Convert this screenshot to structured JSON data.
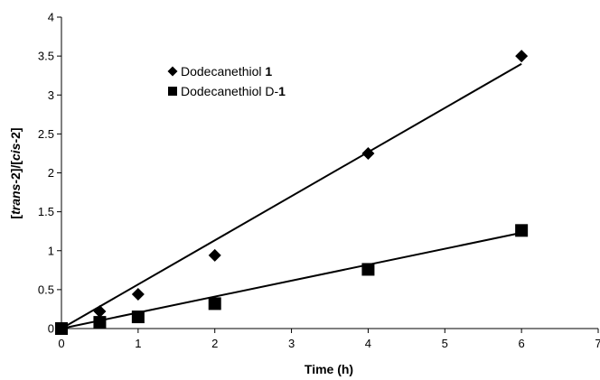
{
  "chart_data": {
    "type": "scatter",
    "title": "",
    "xlabel": "Time (h)",
    "ylabel": {
      "open": "[",
      "trans": "trans",
      "trans_suffix": "-2]/[",
      "cis": "cis",
      "cis_suffix": "-2]"
    },
    "xlim": [
      0,
      7
    ],
    "ylim": [
      0,
      4
    ],
    "x_ticks": [
      "0",
      "1",
      "2",
      "3",
      "4",
      "5",
      "6",
      "7"
    ],
    "y_ticks": [
      "0",
      "0.5",
      "1",
      "1.5",
      "2",
      "2.5",
      "3",
      "3.5",
      "4"
    ],
    "grid": false,
    "legend_position": "top-left",
    "series": [
      {
        "label_text": "Dodecanethiol ",
        "label_bold": "1",
        "marker": "diamond",
        "color": "#000000",
        "x": [
          0,
          0.5,
          1,
          2,
          4,
          6
        ],
        "y": [
          0,
          0.22,
          0.44,
          0.94,
          2.25,
          3.5
        ],
        "trendline": {
          "x": [
            0,
            6
          ],
          "y": [
            0,
            3.4
          ]
        }
      },
      {
        "label_text": "Dodecanethiol D-",
        "label_bold": "1",
        "marker": "square",
        "color": "#000000",
        "x": [
          0,
          0.5,
          1,
          2,
          4,
          6
        ],
        "y": [
          0,
          0.08,
          0.15,
          0.32,
          0.76,
          1.26
        ],
        "trendline": {
          "x": [
            0,
            6
          ],
          "y": [
            0,
            1.23
          ]
        }
      }
    ]
  }
}
